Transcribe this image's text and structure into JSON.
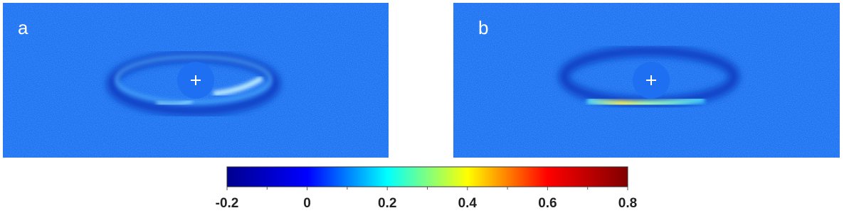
{
  "panels": [
    {
      "label": "a"
    },
    {
      "label": "b"
    }
  ],
  "colorbar": {
    "lim": [
      -0.2,
      0.8
    ],
    "ticks": [
      -0.2,
      0,
      0.2,
      0.4,
      0.6,
      0.8
    ],
    "minor_ticks": [
      -0.1,
      0.1,
      0.3,
      0.5,
      0.7
    ],
    "colors": [
      "#00008f",
      "#0000ff",
      "#00ffff",
      "#ffff00",
      "#ff0000",
      "#800000"
    ]
  }
}
